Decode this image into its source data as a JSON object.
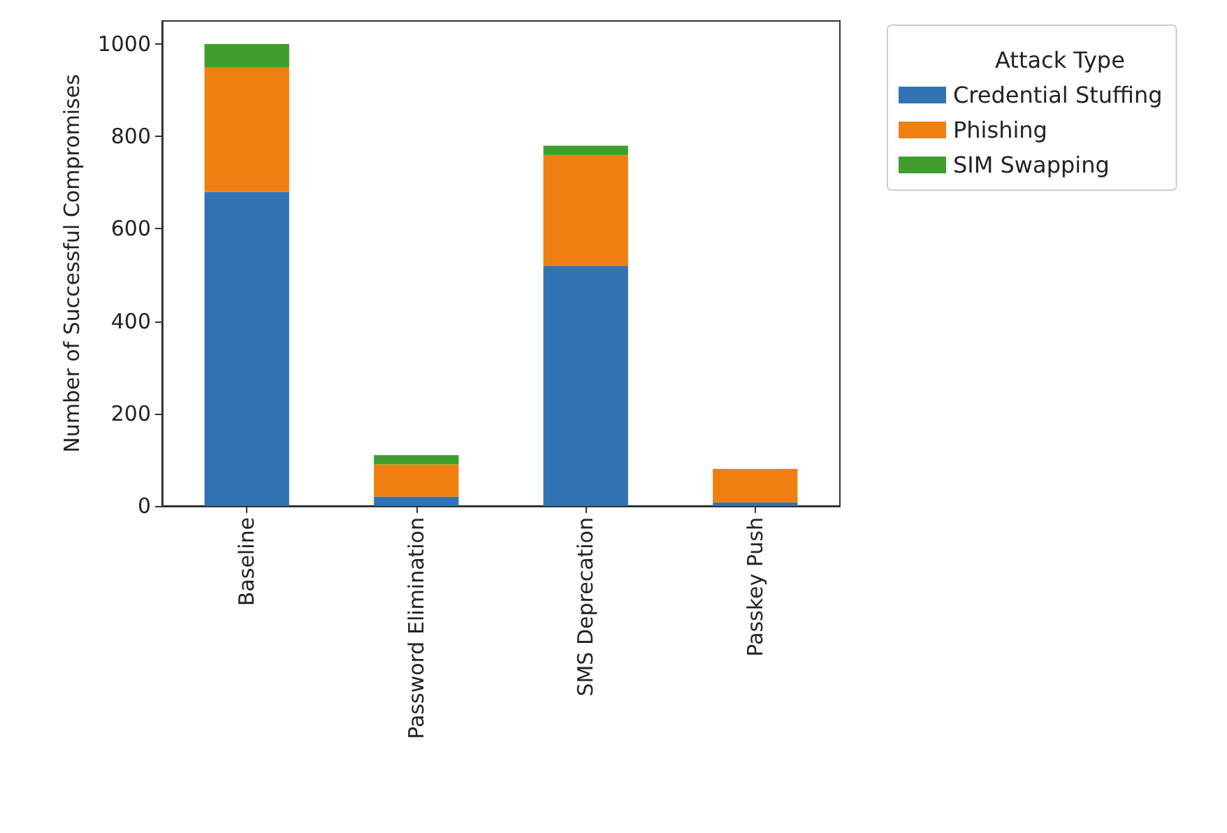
{
  "chart_data": {
    "type": "bar",
    "stacked": true,
    "ylabel": "Number of Successful Compromises",
    "legend_title": "Attack Type",
    "categories": [
      "Baseline",
      "Password Elimination",
      "SMS Deprecation",
      "Passkey Push"
    ],
    "series": [
      {
        "name": "Credential Stuffing",
        "color": "#3274b3",
        "values": [
          680,
          20,
          520,
          8
        ]
      },
      {
        "name": "Phishing",
        "color": "#f07f11",
        "values": [
          270,
          70,
          240,
          72
        ]
      },
      {
        "name": "SIM Swapping",
        "color": "#3f9e2d",
        "values": [
          50,
          20,
          20,
          0
        ]
      }
    ],
    "ylim": [
      0,
      1050
    ],
    "yticks": [
      0,
      200,
      400,
      600,
      800,
      1000
    ],
    "grid": false,
    "legend": "top right"
  }
}
